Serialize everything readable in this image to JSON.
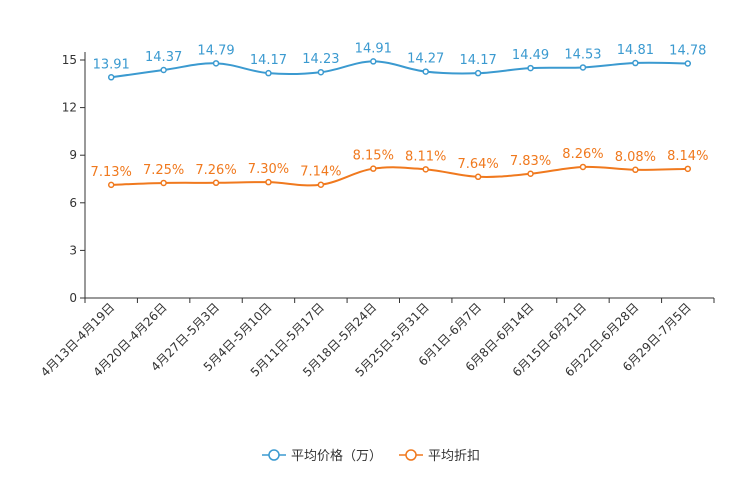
{
  "chart_data": {
    "type": "line",
    "categories": [
      "4月13日-4月19日",
      "4月20日-4月26日",
      "4月27日-5月3日",
      "5月4日-5月10日",
      "5月11日-5月17日",
      "5月18日-5月24日",
      "5月25日-5月31日",
      "6月1日-6月7日",
      "6月8日-6月14日",
      "6月15日-6月21日",
      "6月22日-6月28日",
      "6月29日-7月5日"
    ],
    "ylim": [
      0,
      15
    ],
    "yticks": [
      0,
      3,
      6,
      9,
      12,
      15
    ],
    "series": [
      {
        "name": "平均价格（万）",
        "color": "#3b9ad0",
        "values": [
          13.91,
          14.37,
          14.79,
          14.17,
          14.23,
          14.91,
          14.27,
          14.17,
          14.49,
          14.53,
          14.81,
          14.78
        ],
        "labels": [
          "13.91",
          "14.37",
          "14.79",
          "14.17",
          "14.23",
          "14.91",
          "14.27",
          "14.17",
          "14.49",
          "14.53",
          "14.81",
          "14.78"
        ]
      },
      {
        "name": "平均折扣",
        "color": "#f0791e",
        "values": [
          7.13,
          7.25,
          7.26,
          7.3,
          7.14,
          8.15,
          8.11,
          7.64,
          7.83,
          8.26,
          8.08,
          8.14
        ],
        "labels": [
          "7.13%",
          "7.25%",
          "7.26%",
          "7.30%",
          "7.14%",
          "8.15%",
          "8.11%",
          "7.64%",
          "7.83%",
          "8.26%",
          "8.08%",
          "8.14%"
        ]
      }
    ],
    "legend_position": "bottom-center"
  }
}
